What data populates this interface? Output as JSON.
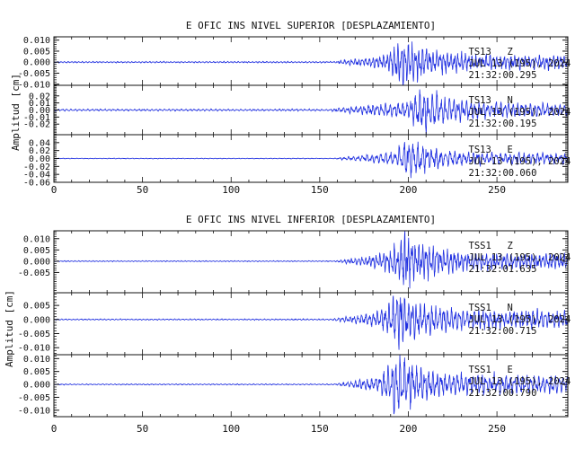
{
  "figure": {
    "colors": {
      "trace": "#1e2ee0",
      "axis": "#111111",
      "background": "#ffffff"
    }
  },
  "chart_data": [
    {
      "type": "line",
      "title": "E OFIC INS NIVEL SUPERIOR [DESPLAZAMIENTO]",
      "ylabel": "Amplitud [cm]",
      "xlabel": "",
      "xlim": [
        0,
        290
      ],
      "xticks": [
        0,
        50,
        100,
        150,
        200,
        250
      ],
      "xtick_labels": [
        "0",
        "50",
        "100",
        "150",
        "200",
        "250"
      ],
      "panels": [
        {
          "station": "TS13",
          "component": "Z",
          "date": "JUL 13 (195), 2024",
          "time": "21:32:00.295",
          "ylim": [
            -0.0105,
            0.0115
          ],
          "yticks": [
            0.01,
            0.005,
            0.0,
            -0.005,
            -0.01
          ],
          "ytick_labels": [
            "0.010",
            "0.005",
            "0.000",
            "-0.005",
            "-0.010"
          ],
          "trace": {
            "onset_s": 158,
            "peak_s": 196,
            "peak_amp": 0.01,
            "pre_noise": 0.0003,
            "coda_amp": 0.004,
            "period_s": 2.0,
            "seed": 11
          }
        },
        {
          "station": "TS13",
          "component": "N",
          "date": "JUL 13 (195), 2024",
          "time": "21:32:00.195",
          "ylim": [
            -0.035,
            0.035
          ],
          "yticks": [
            0.02,
            0.01,
            0.0,
            -0.01,
            -0.02
          ],
          "ytick_labels": [
            "0.02",
            "0.01",
            "0.00",
            "-0.01",
            "-0.02"
          ],
          "trace": {
            "onset_s": 155,
            "peak_s": 208,
            "peak_amp": 0.03,
            "pre_noise": 0.0012,
            "coda_amp": 0.012,
            "period_s": 2.4,
            "seed": 23
          }
        },
        {
          "station": "TS13",
          "component": "E",
          "date": "JUL 13 (195), 2024",
          "time": "21:32:00.060",
          "ylim": [
            -0.06,
            0.06
          ],
          "yticks": [
            0.04,
            0.02,
            0.0,
            -0.02,
            -0.04,
            -0.06
          ],
          "ytick_labels": [
            "0.04",
            "0.02",
            "0.00",
            "-0.02",
            "-0.04",
            "-0.06"
          ],
          "trace": {
            "onset_s": 158,
            "peak_s": 200,
            "peak_amp": 0.045,
            "pre_noise": 0.0008,
            "coda_amp": 0.018,
            "period_s": 2.6,
            "seed": 37
          }
        }
      ]
    },
    {
      "type": "line",
      "title": "E OFIC INS NIVEL INFERIOR [DESPLAZAMIENTO]",
      "ylabel": "Amplitud [cm]",
      "xlabel": "",
      "xlim": [
        0,
        290
      ],
      "xticks": [
        0,
        50,
        100,
        150,
        200,
        250
      ],
      "xtick_labels": [
        "0",
        "50",
        "100",
        "150",
        "200",
        "250"
      ],
      "panels": [
        {
          "station": "TSS1",
          "component": "Z",
          "date": "JUL 13 (195), 2024",
          "time": "21:32:01.635",
          "ylim": [
            -0.014,
            0.0135
          ],
          "yticks": [
            0.01,
            0.005,
            0.0,
            -0.005
          ],
          "ytick_labels": [
            "0.010",
            "0.005",
            "0.000",
            "-0.005"
          ],
          "trace": {
            "onset_s": 158,
            "peak_s": 197,
            "peak_amp": 0.012,
            "pre_noise": 0.0002,
            "coda_amp": 0.0045,
            "period_s": 2.0,
            "seed": 53
          }
        },
        {
          "station": "TSS1",
          "component": "N",
          "date": "JUL 13 (195), 2024",
          "time": "21:32:00.715",
          "ylim": [
            -0.0125,
            0.0095
          ],
          "yticks": [
            0.005,
            0.0,
            -0.005,
            -0.01
          ],
          "ytick_labels": [
            "0.005",
            "0.000",
            "-0.005",
            "-0.010"
          ],
          "trace": {
            "onset_s": 156,
            "peak_s": 194,
            "peak_amp": 0.009,
            "pre_noise": 0.0002,
            "coda_amp": 0.004,
            "period_s": 2.2,
            "seed": 71
          }
        },
        {
          "station": "TSS1",
          "component": "E",
          "date": "JUL 13 (195), 2024",
          "time": "21:32:00.790",
          "ylim": [
            -0.0125,
            0.0115
          ],
          "yticks": [
            0.01,
            0.005,
            0.0,
            -0.005,
            -0.01
          ],
          "ytick_labels": [
            "0.010",
            "0.005",
            "0.000",
            "-0.005",
            "-0.010"
          ],
          "trace": {
            "onset_s": 158,
            "peak_s": 193,
            "peak_amp": 0.011,
            "pre_noise": 0.0002,
            "coda_amp": 0.0045,
            "period_s": 2.3,
            "seed": 89
          }
        }
      ]
    }
  ]
}
